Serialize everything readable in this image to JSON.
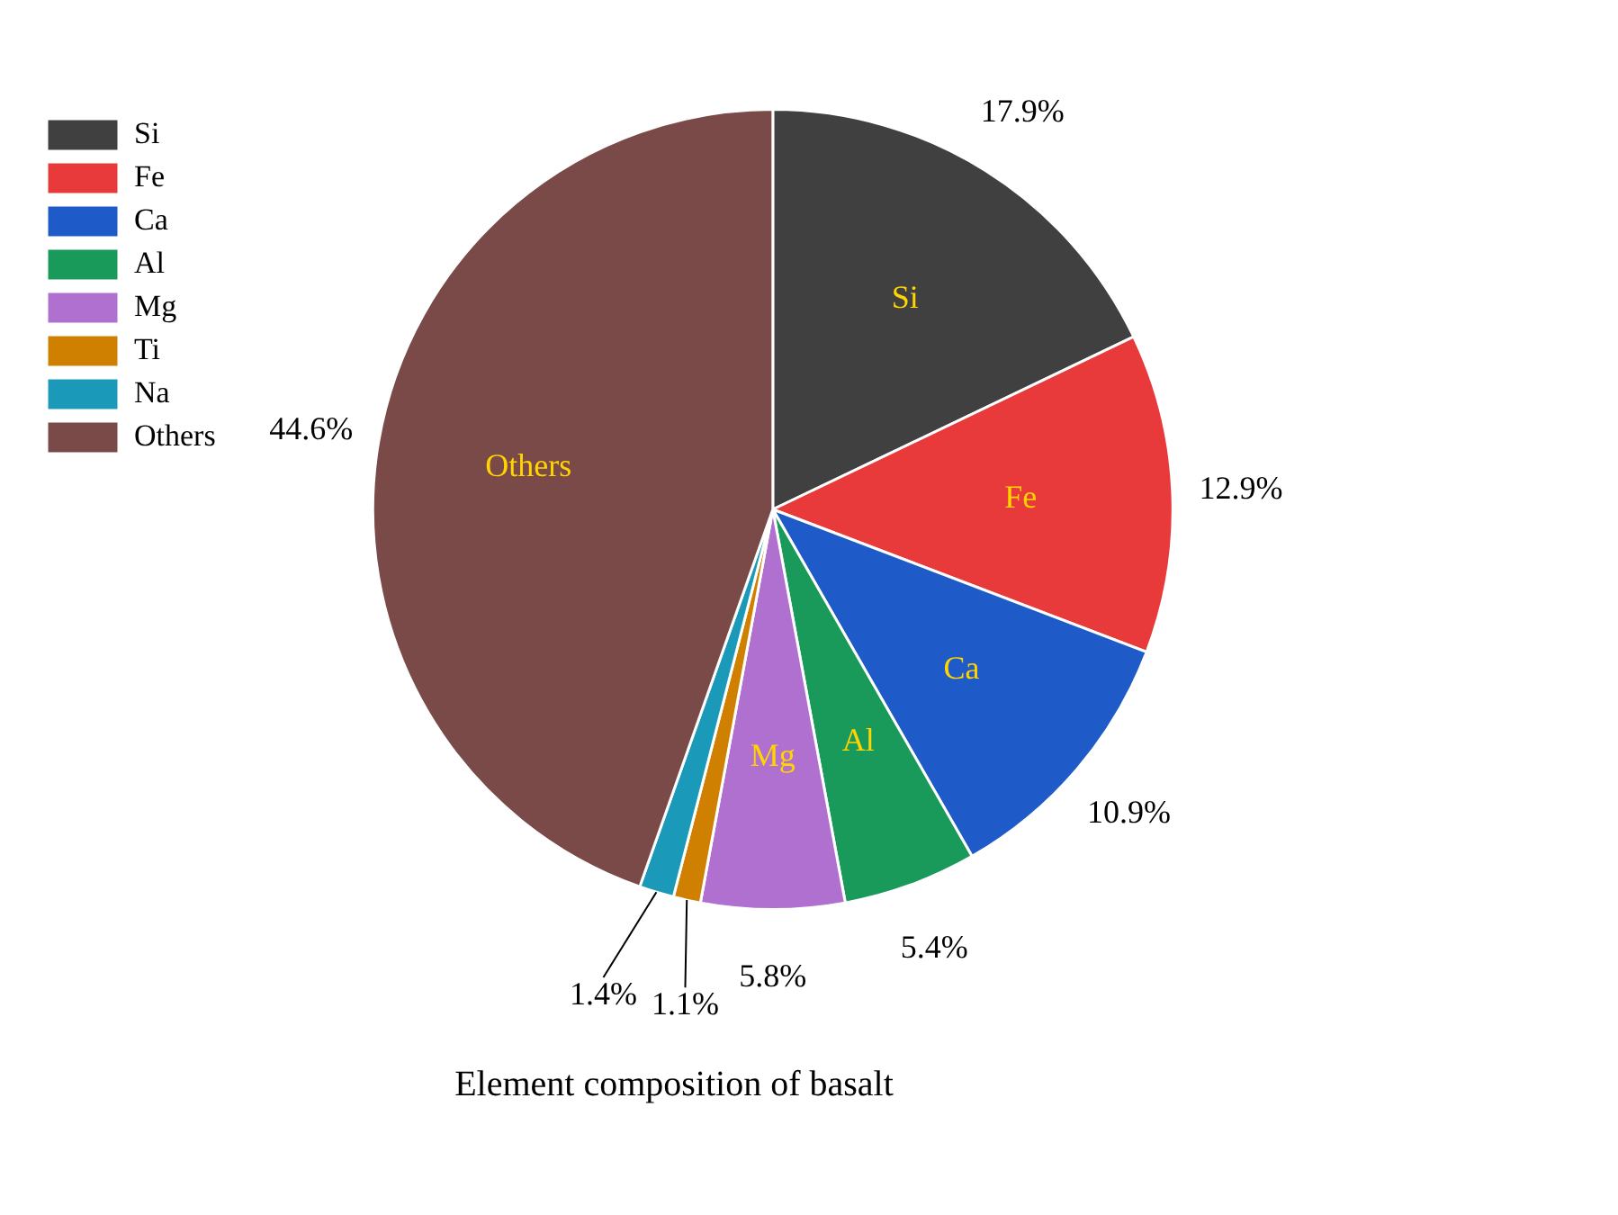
{
  "chart_data": {
    "type": "pie",
    "title": "Element composition of basalt",
    "categories": [
      "Si",
      "Fe",
      "Ca",
      "Al",
      "Mg",
      "Ti",
      "Na",
      "Others"
    ],
    "values": [
      17.9,
      12.9,
      10.9,
      5.4,
      5.8,
      1.1,
      1.4,
      44.6
    ],
    "colors": [
      "#404040",
      "#e83a3a",
      "#1f5bc8",
      "#1a9a5a",
      "#b070d0",
      "#d08000",
      "#1a9ab8",
      "#7a4a48"
    ],
    "value_labels": [
      "17.9%",
      "12.9%",
      "10.9%",
      "5.4%",
      "5.8%",
      "1.1%",
      "1.4%",
      "44.6%"
    ],
    "legend": "top left"
  }
}
